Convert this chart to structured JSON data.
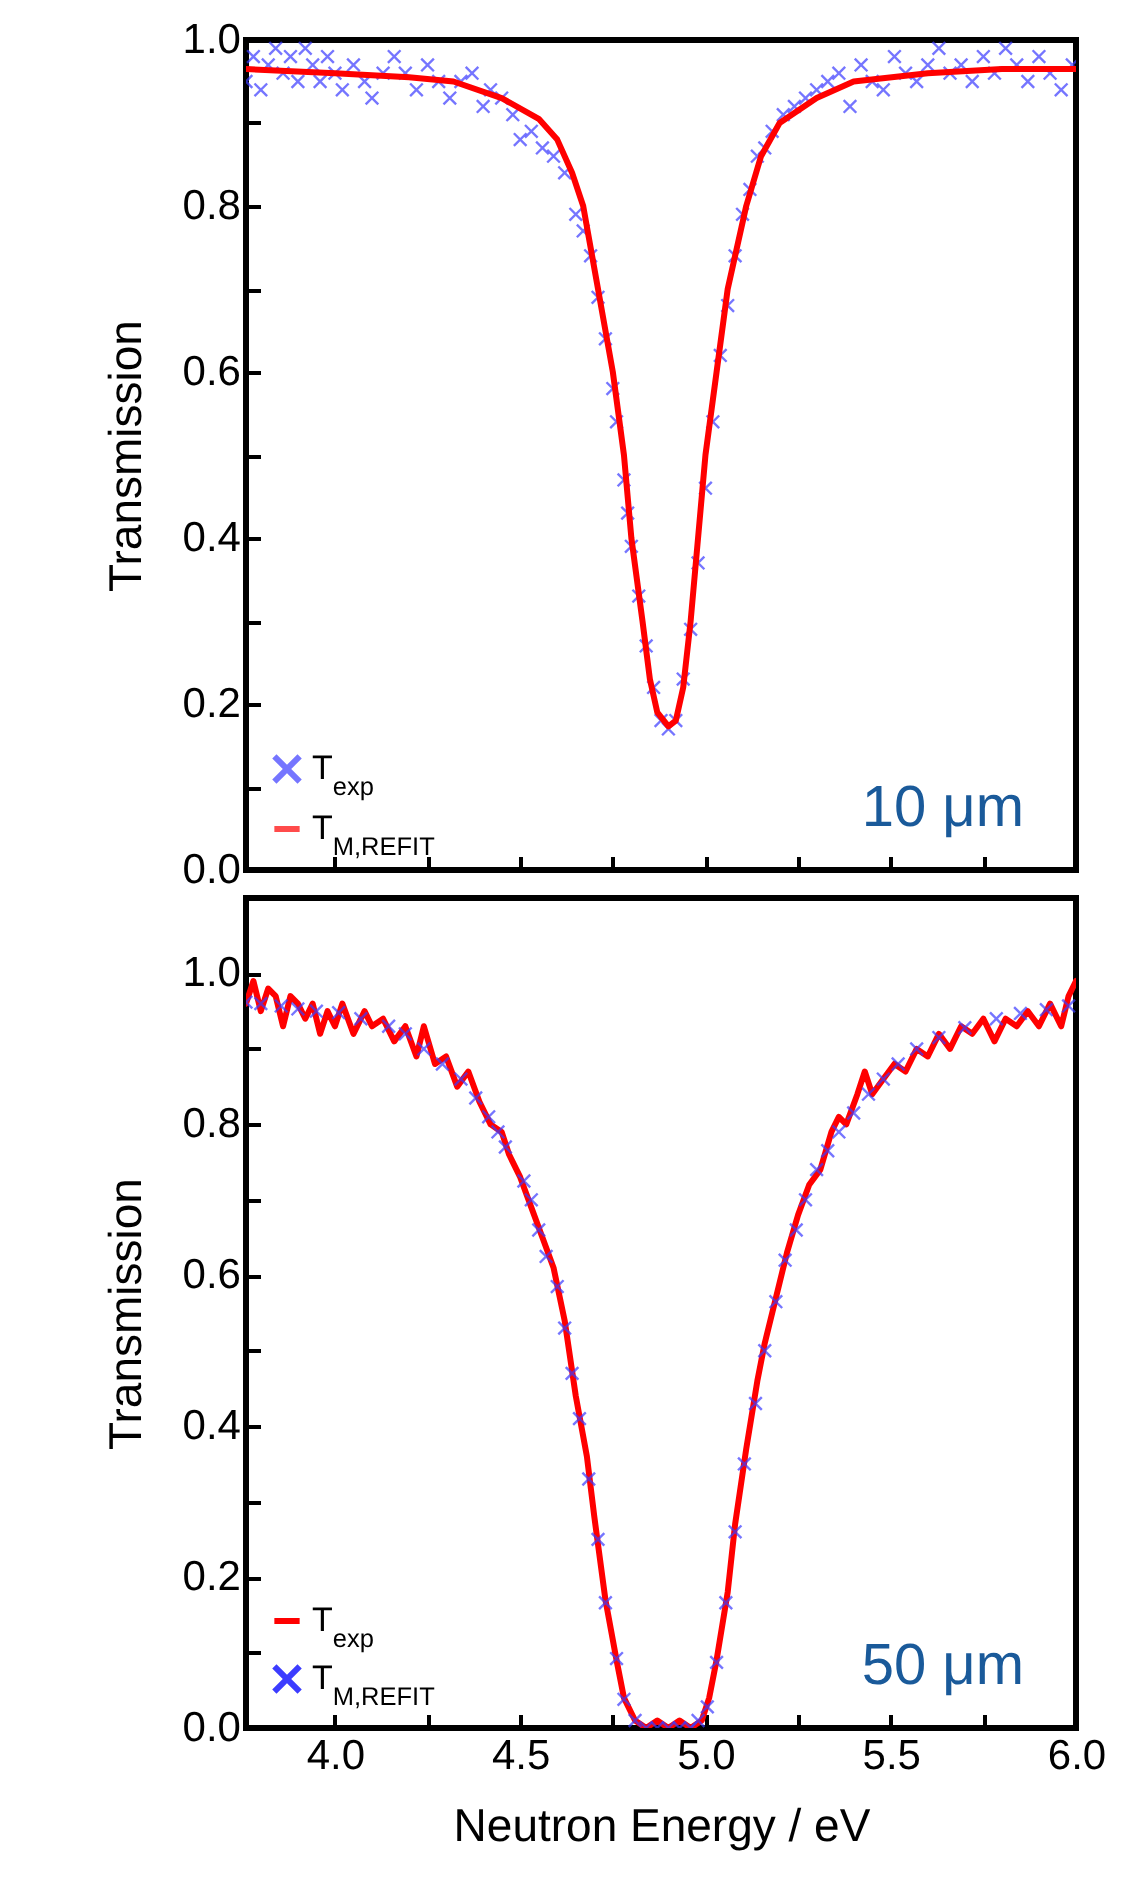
{
  "chart_data": [
    {
      "type": "line",
      "ylabel": "Transmission",
      "annotations": [
        "10 μm"
      ],
      "legend": "bottom left",
      "tick_labels": "y",
      "xlim": [
        3.76,
        6.0
      ],
      "ylim": [
        0,
        1.0
      ],
      "xticks": [
        {
          "value": 4,
          "label": null
        },
        {
          "value": 4.25,
          "label": null
        },
        {
          "value": 4.5,
          "label": null
        },
        {
          "value": 4.75,
          "label": null
        },
        {
          "value": 5,
          "label": null
        },
        {
          "value": 5.25,
          "label": null
        },
        {
          "value": 5.5,
          "label": null
        },
        {
          "value": 5.75,
          "label": null
        },
        {
          "value": 6,
          "label": null
        }
      ],
      "yticks": [
        {
          "value": 0,
          "label": "0.0"
        },
        {
          "value": 0.1,
          "label": null
        },
        0.2,
        {
          "value": 0.3,
          "label": null
        },
        0.4,
        {
          "value": 0.5,
          "label": null
        },
        0.6,
        {
          "value": 0.7,
          "label": null
        },
        0.8,
        {
          "value": 0.9,
          "label": null
        },
        {
          "value": 1,
          "label": "1.0"
        }
      ],
      "series": [
        {
          "name": "T$_{exp}$",
          "type": "scatter",
          "marker": "cross",
          "color": "#3c3cff",
          "x": [
            3.76,
            3.78,
            3.8,
            3.82,
            3.84,
            3.86,
            3.88,
            3.9,
            3.92,
            3.94,
            3.96,
            3.98,
            4.0,
            4.02,
            4.05,
            4.08,
            4.1,
            4.13,
            4.16,
            4.19,
            4.22,
            4.25,
            4.28,
            4.31,
            4.34,
            4.37,
            4.4,
            4.42,
            4.45,
            4.48,
            4.5,
            4.53,
            4.56,
            4.59,
            4.62,
            4.65,
            4.67,
            4.69,
            4.71,
            4.73,
            4.75,
            4.76,
            4.78,
            4.79,
            4.8,
            4.82,
            4.84,
            4.86,
            4.88,
            4.9,
            4.92,
            4.94,
            4.96,
            4.98,
            5.0,
            5.02,
            5.04,
            5.06,
            5.08,
            5.1,
            5.12,
            5.14,
            5.16,
            5.18,
            5.21,
            5.24,
            5.27,
            5.3,
            5.33,
            5.36,
            5.39,
            5.42,
            5.45,
            5.48,
            5.51,
            5.54,
            5.57,
            5.6,
            5.63,
            5.66,
            5.69,
            5.72,
            5.75,
            5.78,
            5.81,
            5.84,
            5.87,
            5.9,
            5.93,
            5.96,
            5.99
          ],
          "values": [
            0.95,
            0.98,
            0.94,
            0.97,
            0.99,
            0.96,
            0.98,
            0.95,
            0.99,
            0.97,
            0.95,
            0.98,
            0.96,
            0.94,
            0.97,
            0.95,
            0.93,
            0.96,
            0.98,
            0.96,
            0.94,
            0.97,
            0.95,
            0.93,
            0.95,
            0.96,
            0.92,
            0.94,
            0.93,
            0.91,
            0.88,
            0.89,
            0.87,
            0.86,
            0.84,
            0.79,
            0.77,
            0.74,
            0.69,
            0.64,
            0.58,
            0.54,
            0.47,
            0.43,
            0.39,
            0.33,
            0.27,
            0.22,
            0.18,
            0.17,
            0.18,
            0.23,
            0.29,
            0.37,
            0.46,
            0.54,
            0.62,
            0.68,
            0.74,
            0.79,
            0.82,
            0.86,
            0.87,
            0.89,
            0.91,
            0.92,
            0.93,
            0.94,
            0.95,
            0.96,
            0.92,
            0.97,
            0.95,
            0.94,
            0.98,
            0.96,
            0.95,
            0.97,
            0.99,
            0.96,
            0.97,
            0.95,
            0.98,
            0.96,
            0.99,
            0.97,
            0.95,
            0.98,
            0.96,
            0.94,
            0.97
          ]
        },
        {
          "name": "T$_{M,REFIT}$",
          "type": "line",
          "color": "#ff0000",
          "x": [
            3.76,
            4.0,
            4.2,
            4.32,
            4.45,
            4.55,
            4.6,
            4.64,
            4.67,
            4.71,
            4.75,
            4.78,
            4.8,
            4.83,
            4.85,
            4.87,
            4.9,
            4.92,
            4.94,
            4.96,
            4.98,
            5.0,
            5.03,
            5.06,
            5.11,
            5.15,
            5.2,
            5.3,
            5.4,
            5.6,
            5.8,
            6.0
          ],
          "values": [
            0.965,
            0.96,
            0.955,
            0.95,
            0.93,
            0.905,
            0.88,
            0.84,
            0.8,
            0.7,
            0.6,
            0.5,
            0.4,
            0.3,
            0.23,
            0.19,
            0.173,
            0.18,
            0.22,
            0.3,
            0.4,
            0.5,
            0.6,
            0.7,
            0.8,
            0.86,
            0.9,
            0.93,
            0.95,
            0.96,
            0.965,
            0.965
          ]
        }
      ]
    },
    {
      "type": "line",
      "xlabel": "Neutron Energy / eV",
      "ylabel": "Transmission",
      "annotations": [
        "50 μm"
      ],
      "legend": "bottom left",
      "xlim": [
        3.76,
        6.0
      ],
      "ylim": [
        0,
        1.1
      ],
      "xticks": [
        {
          "value": 4,
          "label": "4.0"
        },
        {
          "value": 4.25,
          "label": null
        },
        4.5,
        {
          "value": 4.75,
          "label": null
        },
        {
          "value": 5,
          "label": "5.0"
        },
        {
          "value": 5.25,
          "label": null
        },
        5.5,
        {
          "value": 5.75,
          "label": null
        },
        {
          "value": 6,
          "label": "6.0"
        }
      ],
      "yticks": [
        {
          "value": 0,
          "label": "0.0"
        },
        {
          "value": 0.1,
          "label": null
        },
        0.2,
        {
          "value": 0.3,
          "label": null
        },
        0.4,
        {
          "value": 0.5,
          "label": null
        },
        0.6,
        {
          "value": 0.7,
          "label": null
        },
        0.8,
        {
          "value": 0.9,
          "label": null
        },
        {
          "value": 1,
          "label": "1.0"
        }
      ],
      "series": [
        {
          "name": "T$_{exp}$",
          "type": "line",
          "color": "#ff0000",
          "x": [
            3.76,
            3.78,
            3.8,
            3.82,
            3.84,
            3.86,
            3.88,
            3.9,
            3.92,
            3.94,
            3.96,
            3.98,
            4.0,
            4.02,
            4.05,
            4.08,
            4.1,
            4.13,
            4.16,
            4.19,
            4.22,
            4.24,
            4.27,
            4.3,
            4.33,
            4.36,
            4.39,
            4.42,
            4.45,
            4.47,
            4.5,
            4.53,
            4.56,
            4.59,
            4.62,
            4.65,
            4.68,
            4.7,
            4.73,
            4.76,
            4.78,
            4.81,
            4.84,
            4.87,
            4.9,
            4.93,
            4.96,
            4.99,
            5.01,
            5.03,
            5.06,
            5.08,
            5.11,
            5.14,
            5.16,
            5.19,
            5.22,
            5.25,
            5.28,
            5.31,
            5.34,
            5.36,
            5.38,
            5.41,
            5.43,
            5.45,
            5.48,
            5.51,
            5.54,
            5.57,
            5.6,
            5.63,
            5.66,
            5.69,
            5.72,
            5.75,
            5.78,
            5.81,
            5.84,
            5.87,
            5.9,
            5.93,
            5.96,
            5.98,
            6.0
          ],
          "values": [
            0.96,
            0.99,
            0.95,
            0.98,
            0.97,
            0.93,
            0.97,
            0.96,
            0.94,
            0.96,
            0.92,
            0.95,
            0.93,
            0.96,
            0.92,
            0.95,
            0.93,
            0.94,
            0.91,
            0.93,
            0.89,
            0.93,
            0.88,
            0.89,
            0.85,
            0.87,
            0.83,
            0.8,
            0.79,
            0.76,
            0.73,
            0.69,
            0.65,
            0.61,
            0.54,
            0.44,
            0.36,
            0.28,
            0.17,
            0.09,
            0.04,
            0.01,
            0.0,
            0.01,
            0.0,
            0.01,
            0.0,
            0.01,
            0.04,
            0.09,
            0.18,
            0.27,
            0.37,
            0.46,
            0.51,
            0.57,
            0.63,
            0.68,
            0.72,
            0.74,
            0.79,
            0.81,
            0.8,
            0.84,
            0.87,
            0.84,
            0.86,
            0.88,
            0.87,
            0.9,
            0.89,
            0.92,
            0.9,
            0.93,
            0.92,
            0.94,
            0.91,
            0.94,
            0.93,
            0.95,
            0.93,
            0.96,
            0.93,
            0.97,
            0.99
          ]
        },
        {
          "name": "T$_{M,REFIT}$",
          "type": "scatter",
          "marker": "cross",
          "color": "#3c3cff",
          "x": [
            3.76,
            3.8,
            3.855,
            3.9,
            3.95,
            4.01,
            4.07,
            4.145,
            4.19,
            4.24,
            4.29,
            4.34,
            4.38,
            4.415,
            4.44,
            4.46,
            4.51,
            4.53,
            4.55,
            4.57,
            4.6,
            4.62,
            4.64,
            4.66,
            4.685,
            4.71,
            4.73,
            4.76,
            4.78,
            4.81,
            4.84,
            4.87,
            4.9,
            4.93,
            4.96,
            4.98,
            5.005,
            5.03,
            5.055,
            5.08,
            5.105,
            5.135,
            5.16,
            5.19,
            5.215,
            5.245,
            5.27,
            5.3,
            5.33,
            5.36,
            5.4,
            5.44,
            5.48,
            5.52,
            5.57,
            5.63,
            5.7,
            5.785,
            5.85,
            5.92,
            5.98
          ],
          "values": [
            0.962,
            0.96,
            0.957,
            0.953,
            0.95,
            0.948,
            0.94,
            0.93,
            0.92,
            0.9,
            0.88,
            0.86,
            0.835,
            0.81,
            0.79,
            0.77,
            0.725,
            0.7,
            0.66,
            0.625,
            0.585,
            0.53,
            0.47,
            0.41,
            0.33,
            0.25,
            0.166,
            0.092,
            0.038,
            0.01,
            0.0,
            0.0,
            0.0,
            0.0,
            0.0,
            0.01,
            0.028,
            0.087,
            0.166,
            0.26,
            0.35,
            0.43,
            0.5,
            0.565,
            0.62,
            0.66,
            0.7,
            0.74,
            0.765,
            0.79,
            0.815,
            0.84,
            0.86,
            0.88,
            0.9,
            0.915,
            0.928,
            0.94,
            0.947,
            0.952,
            0.957
          ]
        }
      ]
    }
  ]
}
